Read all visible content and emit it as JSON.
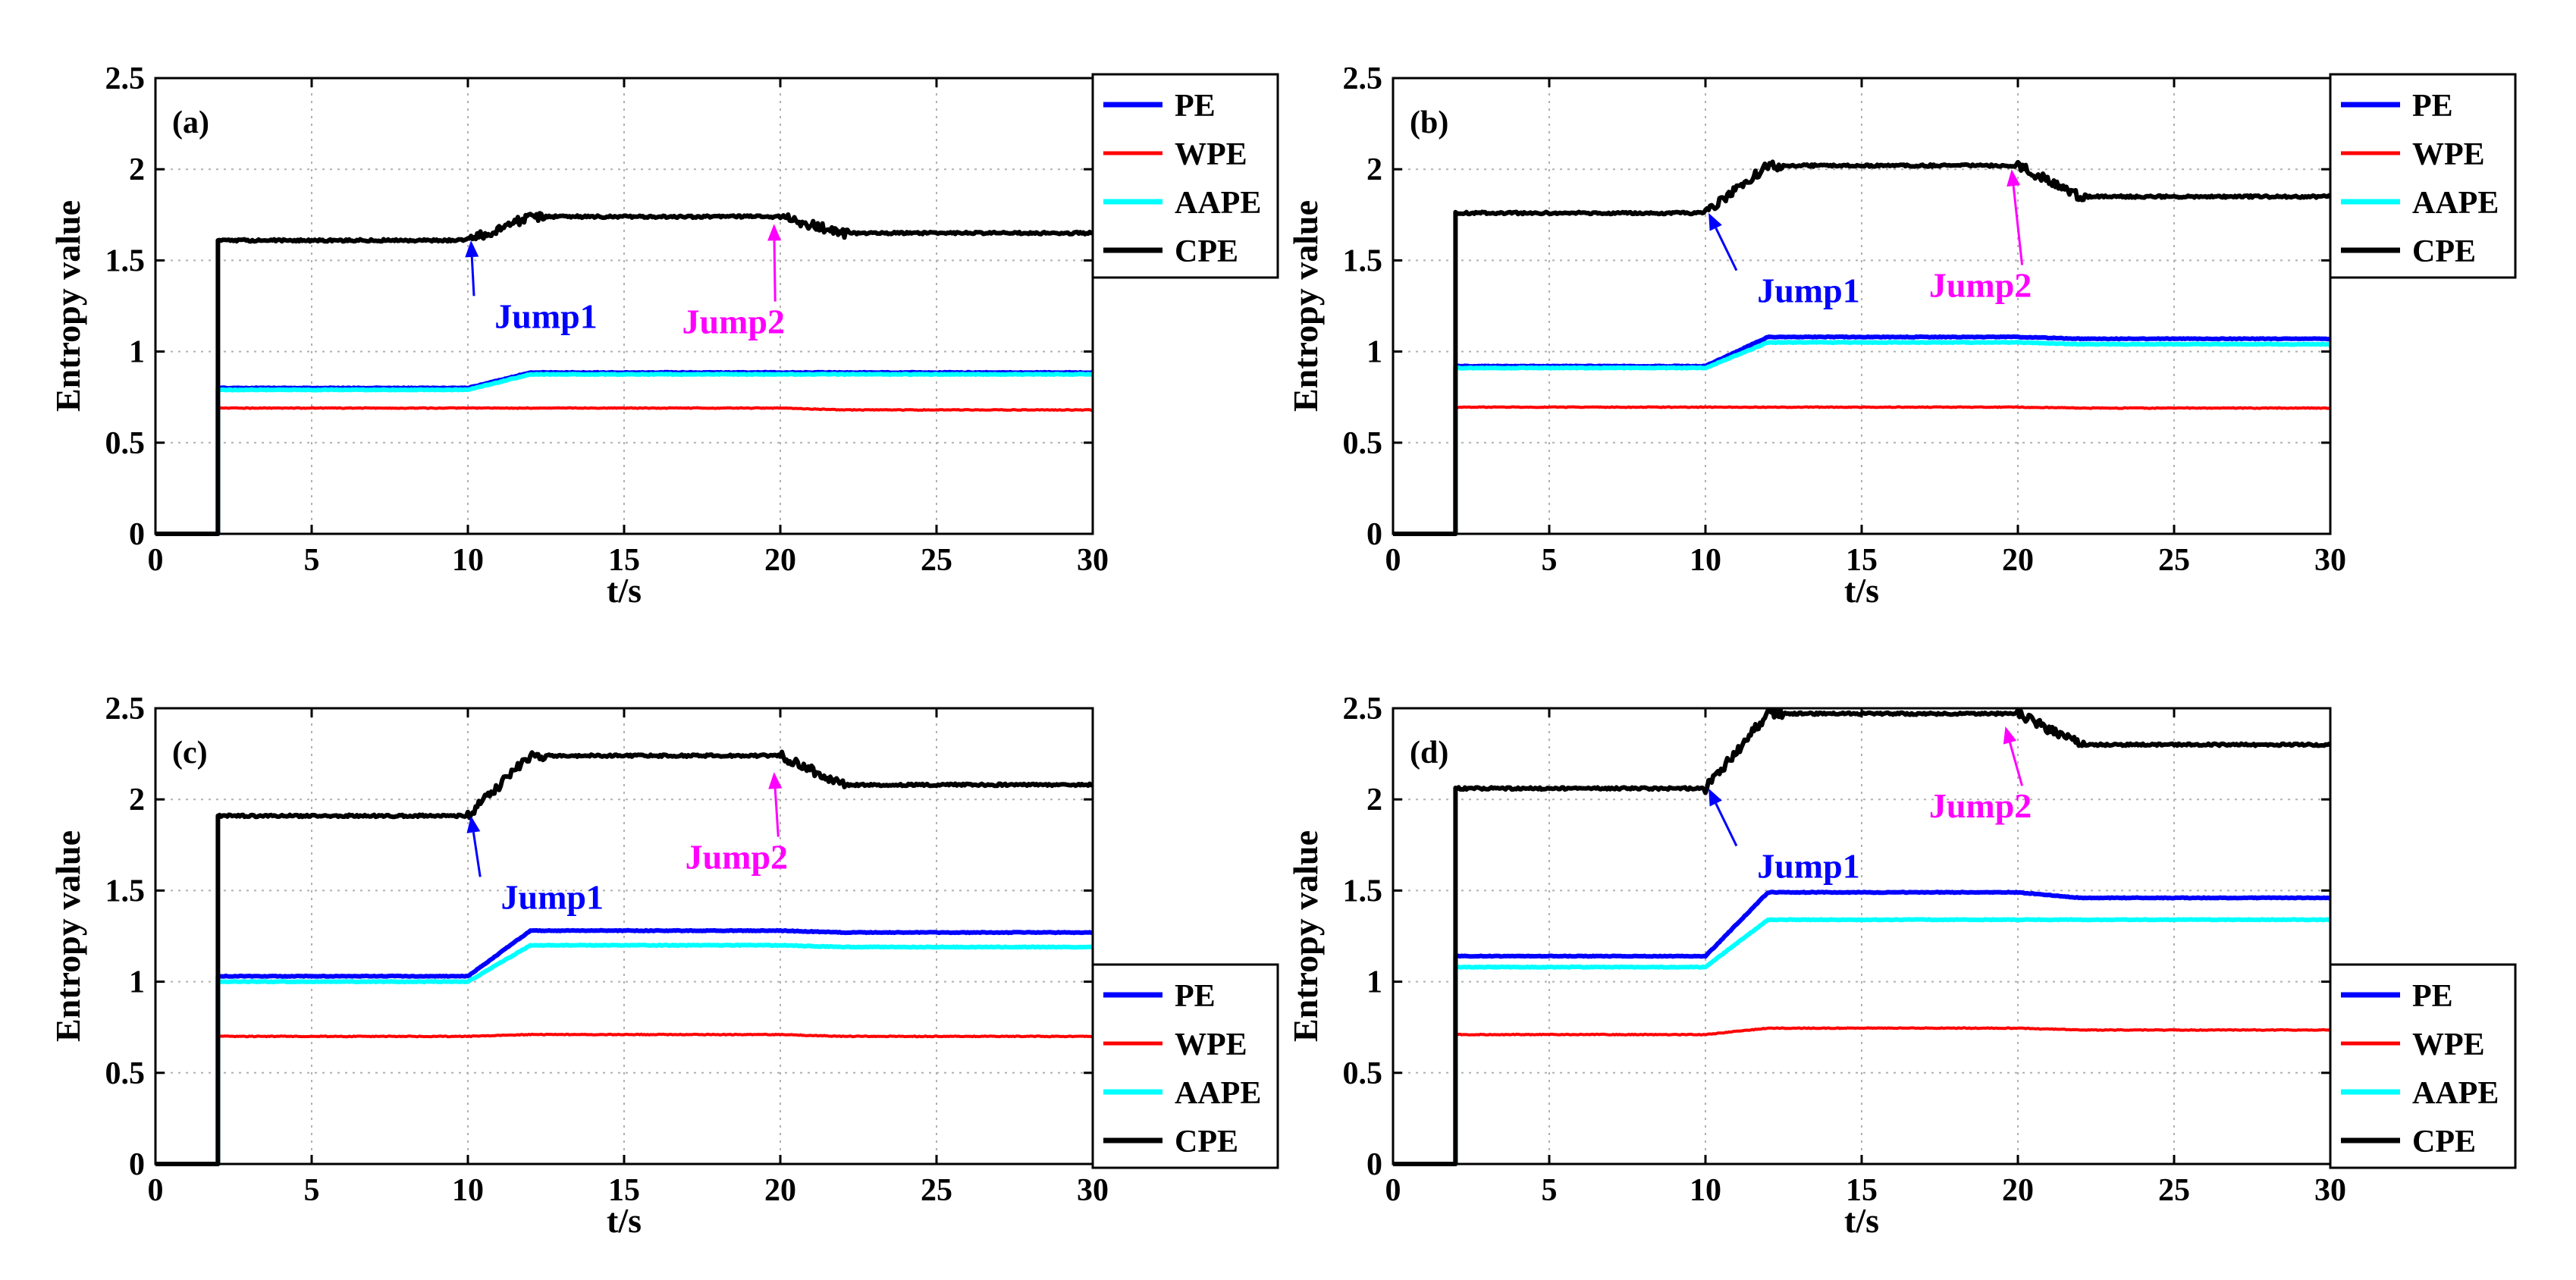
{
  "chart_data": [
    {
      "type": "line",
      "panel_label": "(a)",
      "xlabel": "t/s",
      "ylabel": "Entropy value",
      "xlim": [
        0,
        30
      ],
      "ylim": [
        0,
        2.5
      ],
      "xticks": [
        "0",
        "5",
        "10",
        "15",
        "20",
        "25",
        "30"
      ],
      "yticks": [
        "0",
        "0.5",
        "1",
        "1.5",
        "2",
        "2.5"
      ],
      "grid": true,
      "legend_position": "top-right",
      "series": [
        {
          "name": "PE",
          "color": "#0000ff",
          "start": 2,
          "base": 0.8,
          "peak": 0.885,
          "end": 0.885
        },
        {
          "name": "WPE",
          "color": "#ff0000",
          "start": 2,
          "base": 0.69,
          "peak": 0.69,
          "end": 0.68
        },
        {
          "name": "AAPE",
          "color": "#00ffff",
          "start": 2,
          "base": 0.79,
          "peak": 0.875,
          "end": 0.875
        },
        {
          "name": "CPE",
          "color": "#000000",
          "start": 2,
          "base": 1.61,
          "peak": 1.74,
          "end": 1.65
        }
      ],
      "annotations": [
        {
          "label": "Jump1",
          "color": "#0000ff",
          "target": [
            10.1,
            1.61
          ],
          "text_at": [
            12.5,
            1.13
          ]
        },
        {
          "label": "Jump2",
          "color": "#ff00ff",
          "target": [
            19.8,
            1.7
          ],
          "text_at": [
            18.5,
            1.1
          ]
        }
      ]
    },
    {
      "type": "line",
      "panel_label": "(b)",
      "xlabel": "t/s",
      "ylabel": "Entropy value",
      "xlim": [
        0,
        30
      ],
      "ylim": [
        0,
        2.5
      ],
      "xticks": [
        "0",
        "5",
        "10",
        "15",
        "20",
        "25",
        "30"
      ],
      "yticks": [
        "0",
        "0.5",
        "1",
        "1.5",
        "2",
        "2.5"
      ],
      "grid": true,
      "legend_position": "top-right",
      "series": [
        {
          "name": "PE",
          "color": "#0000ff",
          "start": 2,
          "base": 0.92,
          "peak": 1.08,
          "end": 1.07
        },
        {
          "name": "WPE",
          "color": "#ff0000",
          "start": 2,
          "base": 0.695,
          "peak": 0.695,
          "end": 0.69
        },
        {
          "name": "AAPE",
          "color": "#00ffff",
          "start": 2,
          "base": 0.91,
          "peak": 1.05,
          "end": 1.04
        },
        {
          "name": "CPE",
          "color": "#000000",
          "start": 2,
          "base": 1.76,
          "peak": 2.02,
          "end": 1.85
        }
      ],
      "annotations": [
        {
          "label": "Jump1",
          "color": "#0000ff",
          "target": [
            10.1,
            1.76
          ],
          "text_at": [
            13.3,
            1.27
          ]
        },
        {
          "label": "Jump2",
          "color": "#ff00ff",
          "target": [
            19.8,
            2.0
          ],
          "text_at": [
            18.8,
            1.3
          ]
        }
      ]
    },
    {
      "type": "line",
      "panel_label": "(c)",
      "xlabel": "t/s",
      "ylabel": "Entropy value",
      "xlim": [
        0,
        30
      ],
      "ylim": [
        0,
        2.5
      ],
      "xticks": [
        "0",
        "5",
        "10",
        "15",
        "20",
        "25",
        "30"
      ],
      "yticks": [
        "0",
        "0.5",
        "1",
        "1.5",
        "2",
        "2.5"
      ],
      "grid": true,
      "legend_position": "bottom-right",
      "series": [
        {
          "name": "PE",
          "color": "#0000ff",
          "start": 2,
          "base": 1.03,
          "peak": 1.28,
          "end": 1.27
        },
        {
          "name": "WPE",
          "color": "#ff0000",
          "start": 2,
          "base": 0.7,
          "peak": 0.71,
          "end": 0.7
        },
        {
          "name": "AAPE",
          "color": "#00ffff",
          "start": 2,
          "base": 1.0,
          "peak": 1.2,
          "end": 1.19
        },
        {
          "name": "CPE",
          "color": "#000000",
          "start": 2,
          "base": 1.91,
          "peak": 2.24,
          "end": 2.08
        }
      ],
      "annotations": [
        {
          "label": "Jump1",
          "color": "#0000ff",
          "target": [
            10.1,
            1.91
          ],
          "text_at": [
            12.7,
            1.4
          ]
        },
        {
          "label": "Jump2",
          "color": "#ff00ff",
          "target": [
            19.8,
            2.15
          ],
          "text_at": [
            18.6,
            1.62
          ]
        }
      ]
    },
    {
      "type": "line",
      "panel_label": "(d)",
      "xlabel": "t/s",
      "ylabel": "Entropy value",
      "xlim": [
        0,
        30
      ],
      "ylim": [
        0,
        2.5
      ],
      "xticks": [
        "0",
        "5",
        "10",
        "15",
        "20",
        "25",
        "30"
      ],
      "yticks": [
        "0",
        "0.5",
        "1",
        "1.5",
        "2",
        "2.5"
      ],
      "grid": true,
      "legend_position": "bottom-right",
      "series": [
        {
          "name": "PE",
          "color": "#0000ff",
          "start": 2,
          "base": 1.14,
          "peak": 1.49,
          "end": 1.46
        },
        {
          "name": "WPE",
          "color": "#ff0000",
          "start": 2,
          "base": 0.71,
          "peak": 0.745,
          "end": 0.735
        },
        {
          "name": "AAPE",
          "color": "#00ffff",
          "start": 2,
          "base": 1.08,
          "peak": 1.34,
          "end": 1.34
        },
        {
          "name": "CPE",
          "color": "#000000",
          "start": 2,
          "base": 2.06,
          "peak": 2.47,
          "end": 2.3
        }
      ],
      "annotations": [
        {
          "label": "Jump1",
          "color": "#0000ff",
          "target": [
            10.1,
            2.06
          ],
          "text_at": [
            13.3,
            1.57
          ]
        },
        {
          "label": "Jump2",
          "color": "#ff00ff",
          "target": [
            19.6,
            2.4
          ],
          "text_at": [
            18.8,
            1.9
          ]
        }
      ]
    }
  ]
}
